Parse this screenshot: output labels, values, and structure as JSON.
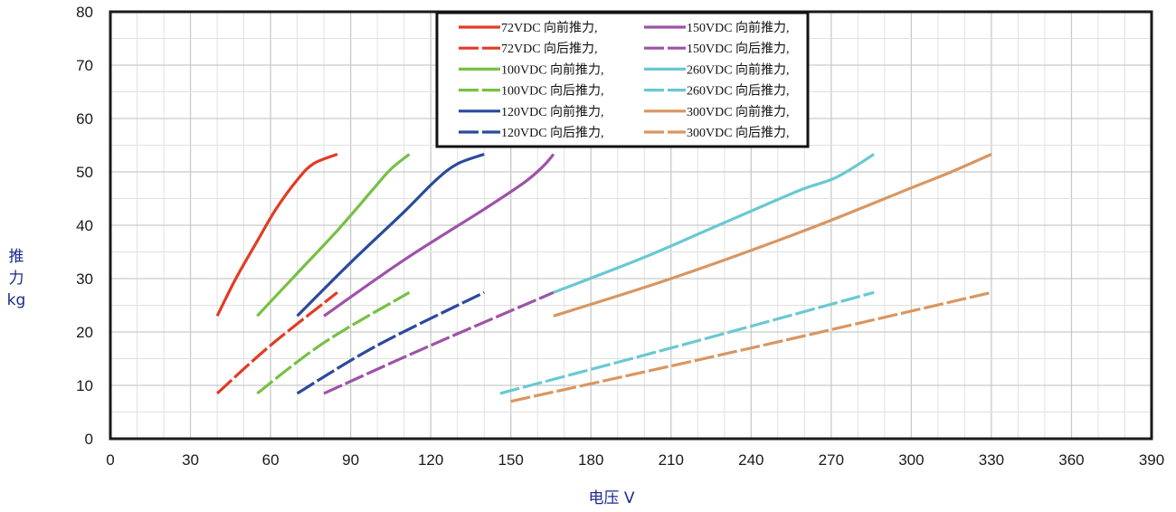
{
  "chart_data": {
    "type": "line",
    "title": "",
    "xlabel": "电压 V",
    "ylabel_lines": [
      "推",
      "力",
      "kg"
    ],
    "xlim": [
      0,
      390
    ],
    "ylim": [
      0,
      80
    ],
    "x_ticks": [
      "0",
      "30",
      "60",
      "90",
      "120",
      "150",
      "180",
      "210",
      "240",
      "270",
      "300",
      "330",
      "360",
      "390"
    ],
    "y_ticks": [
      "0",
      "10",
      "20",
      "30",
      "40",
      "50",
      "60",
      "70",
      "80"
    ],
    "grid": true,
    "legend_position": "top-center",
    "series": [
      {
        "name": "72VDC 向前推力,",
        "color": "#e23b24",
        "dashed": false,
        "points": [
          [
            40,
            23
          ],
          [
            47,
            30
          ],
          [
            55,
            37
          ],
          [
            62,
            43
          ],
          [
            70,
            48.5
          ],
          [
            76,
            51.5
          ],
          [
            85,
            53.3
          ]
        ]
      },
      {
        "name": "72VDC 向后推力,",
        "color": "#e23b24",
        "dashed": true,
        "points": [
          [
            40,
            8.5
          ],
          [
            60,
            17.5
          ],
          [
            85,
            27.4
          ]
        ]
      },
      {
        "name": "100VDC 向前推力,",
        "color": "#77c043",
        "dashed": false,
        "points": [
          [
            55,
            23
          ],
          [
            70,
            31
          ],
          [
            85,
            39
          ],
          [
            98,
            46.5
          ],
          [
            105,
            50.5
          ],
          [
            112,
            53.3
          ]
        ]
      },
      {
        "name": "100VDC 向后推力,",
        "color": "#77c043",
        "dashed": true,
        "points": [
          [
            55,
            8.5
          ],
          [
            80,
            18
          ],
          [
            112,
            27.4
          ]
        ]
      },
      {
        "name": "120VDC 向前推力,",
        "color": "#2a4a9c",
        "dashed": false,
        "points": [
          [
            70,
            23
          ],
          [
            90,
            33
          ],
          [
            110,
            42.5
          ],
          [
            122,
            48.5
          ],
          [
            130,
            51.5
          ],
          [
            140,
            53.3
          ]
        ]
      },
      {
        "name": "120VDC 向后推力,",
        "color": "#2a4a9c",
        "dashed": true,
        "points": [
          [
            70,
            8.5
          ],
          [
            100,
            17.5
          ],
          [
            140,
            27.4
          ]
        ]
      },
      {
        "name": "150VDC 向前推力,",
        "color": "#9c53a6",
        "dashed": false,
        "points": [
          [
            80,
            23
          ],
          [
            110,
            33.5
          ],
          [
            140,
            43
          ],
          [
            155,
            48
          ],
          [
            162,
            51
          ],
          [
            166,
            53.3
          ]
        ]
      },
      {
        "name": "150VDC 向后推力,",
        "color": "#9c53a6",
        "dashed": true,
        "points": [
          [
            80,
            8.5
          ],
          [
            120,
            17.5
          ],
          [
            166,
            27.4
          ]
        ]
      },
      {
        "name": "260VDC 向前推力,",
        "color": "#69c8d2",
        "dashed": false,
        "points": [
          [
            166,
            27.4
          ],
          [
            200,
            34
          ],
          [
            230,
            40.5
          ],
          [
            258,
            46.5
          ],
          [
            272,
            49
          ],
          [
            286,
            53.3
          ]
        ]
      },
      {
        "name": "260VDC 向后推力,",
        "color": "#69c8d2",
        "dashed": true,
        "points": [
          [
            146,
            8.5
          ],
          [
            210,
            17
          ],
          [
            286,
            27.4
          ]
        ]
      },
      {
        "name": "300VDC 向前推力,",
        "color": "#d99660",
        "dashed": false,
        "points": [
          [
            166,
            23
          ],
          [
            210,
            30
          ],
          [
            260,
            39
          ],
          [
            300,
            47
          ],
          [
            315,
            50
          ],
          [
            330,
            53.3
          ]
        ]
      },
      {
        "name": "300VDC 向后推力,",
        "color": "#d99660",
        "dashed": true,
        "points": [
          [
            150,
            7
          ],
          [
            240,
            17
          ],
          [
            330,
            27.4
          ]
        ]
      }
    ]
  }
}
